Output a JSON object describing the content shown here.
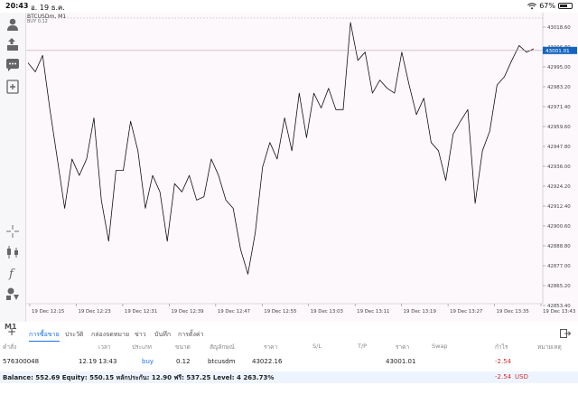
{
  "statusbar": {
    "time": "20:43",
    "date": "อ. 19 ธ.ค.",
    "battery": "67%",
    "battery_level": 0.67
  },
  "chart": {
    "symbol": "BTCUSDm, M1",
    "sub": "BUY 0.12",
    "current_price": "43001.01",
    "timeframe": "M1",
    "y_ticks": [
      "43018.60",
      "43006.80",
      "42995.00",
      "42983.20",
      "42971.40",
      "42959.60",
      "42947.80",
      "42936.00",
      "42924.20",
      "42912.40",
      "42900.60",
      "42888.80",
      "42877.00",
      "42865.20",
      "42853.40"
    ],
    "x_ticks": [
      "19 Dec 12:15",
      "19 Dec 12:23",
      "19 Dec 12:31",
      "19 Dec 12:39",
      "19 Dec 12:47",
      "19 Dec 12:55",
      "19 Dec 13:03",
      "19 Dec 13:11",
      "19 Dec 13:19",
      "19 Dec 13:27",
      "19 Dec 13:35",
      "19 Dec 13:43"
    ],
    "colors": {
      "line": "#111111",
      "price_tag": "#1565c0",
      "grid": "#e6e2e6",
      "dotted": "#999999"
    }
  },
  "chart_data": {
    "type": "line",
    "ylim": [
      42847.0,
      43024.0
    ],
    "series": [
      {
        "values": [
          42993.5,
          42988,
          42998,
          42965,
          42935,
          42905,
          42935,
          42925,
          42935,
          42960,
          42910,
          42885,
          42928,
          42928,
          42958,
          42940,
          42905,
          42925,
          42915,
          42885,
          42920,
          42915,
          42925,
          42910,
          42912,
          42935,
          42925,
          42910,
          42905,
          42880,
          42865,
          42890,
          42930,
          42945,
          42935,
          42960,
          42940,
          42975,
          42948,
          42975,
          42966,
          42978,
          42965,
          42965,
          43018,
          42995,
          43000,
          42975,
          42983,
          42978,
          42975,
          43000,
          42980,
          42962,
          42972,
          42945,
          42940,
          42922,
          42950,
          42958,
          42965,
          42908,
          42940,
          42952,
          42980,
          42985,
          42995,
          43004,
          43000,
          43002
        ]
      }
    ]
  },
  "nav_icons": [
    "user-icon",
    "trade-icon",
    "chat-icon",
    "new-chart-icon",
    "crosshair-icon",
    "candles-icon",
    "function-icon",
    "objects-icon"
  ],
  "tabs": {
    "items": [
      "การซื้อขาย",
      "ประวัติ",
      "กล่องจดหมาย",
      "ข่าว",
      "บันทึก",
      "การตั้งค่า"
    ],
    "active_index": 0
  },
  "table": {
    "headers": [
      "คำสั่ง",
      "เวลา",
      "ประเภท",
      "ขนาด",
      "สัญลักษณ์",
      "ราคา",
      "S/L",
      "T/P",
      "ราคา",
      "Swap",
      "กำไร",
      "หมายเหตุ"
    ],
    "row": {
      "order": "576300048",
      "time": "12.19 13:43",
      "type": "buy",
      "volume": "0.12",
      "symbol": "btcusdm",
      "price_open": "43022.16",
      "price_current": "43001.01",
      "profit": "-2.54"
    }
  },
  "balance": {
    "text": "Balance: 552.69 Equity: 550.15 หลักประกัน: 12.90 ฟรี: 537.25 Level: 4 263.73%",
    "profit": "-2.54",
    "currency": "USD"
  }
}
